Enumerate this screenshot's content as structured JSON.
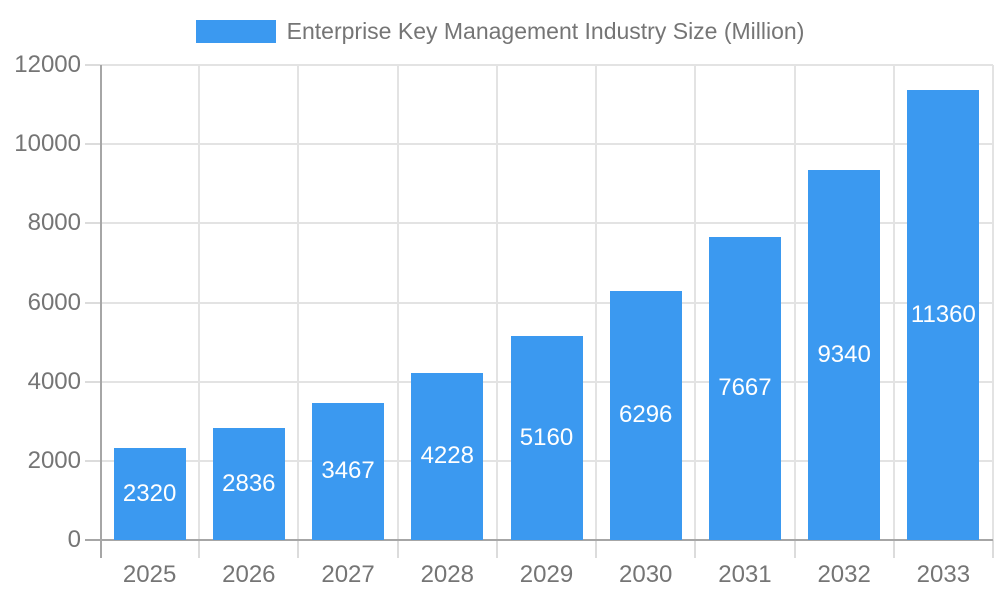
{
  "chart_data": {
    "type": "bar",
    "title": "Enterprise Key Management Industry Size (Million)",
    "legend": {
      "label": "Enterprise Key Management Industry Size (Million)",
      "position": "top"
    },
    "categories": [
      "2025",
      "2026",
      "2027",
      "2028",
      "2029",
      "2030",
      "2031",
      "2032",
      "2033"
    ],
    "values": [
      2320,
      2836,
      3467,
      4228,
      5160,
      6296,
      7667,
      9340,
      11360
    ],
    "xlabel": "",
    "ylabel": "",
    "ylim": [
      0,
      12000
    ],
    "yticks": [
      0,
      2000,
      4000,
      6000,
      8000,
      10000,
      12000
    ],
    "grid": true,
    "value_labels_shown": true,
    "colors": {
      "bar": "#3B99F0",
      "grid": "#E3E3E3",
      "tick": "#DCDCDC",
      "axis": "#A6A6A6",
      "text": "#757575",
      "value_label": "#FFFFFF",
      "background": "#FFFFFF"
    }
  }
}
